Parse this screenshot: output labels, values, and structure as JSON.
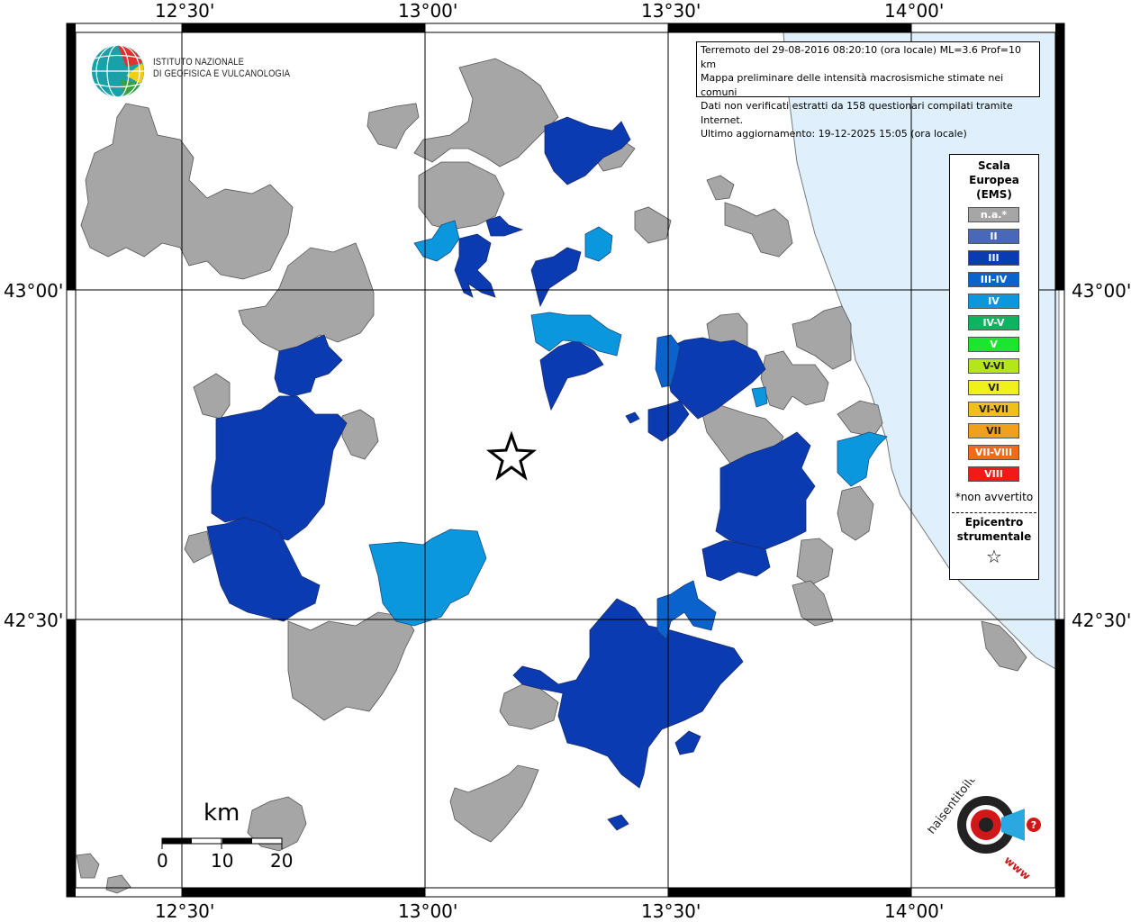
{
  "map": {
    "lon_labels": [
      "12°30'",
      "13°00'",
      "13°30'",
      "14°00'"
    ],
    "lat_labels": [
      "43°00'",
      "42°30'"
    ]
  },
  "info": {
    "line1": "Terremoto del 29-08-2016 08:20:10 (ora locale) ML=3.6 Prof=10 km",
    "line2": "Mappa preliminare delle intensità macrosismiche stimate nei comuni",
    "line3": "Dati non verificati estratti da 158 questionari compilati tramite Internet.",
    "line4": "Ultimo aggiornamento: 19-12-2025 15:05 (ora locale)"
  },
  "legend": {
    "title_1": "Scala",
    "title_2": "Europea",
    "title_3": "(EMS)",
    "items": [
      {
        "label": "n.a.*",
        "color": "#a6a6a6"
      },
      {
        "label": "II",
        "color": "#4a68b8"
      },
      {
        "label": "III",
        "color": "#0a3bb0"
      },
      {
        "label": "III-IV",
        "color": "#0a62cc"
      },
      {
        "label": "IV",
        "color": "#0b97dd"
      },
      {
        "label": "IV-V",
        "color": "#0bb45e"
      },
      {
        "label": "V",
        "color": "#1ae62c"
      },
      {
        "label": "V-VI",
        "color": "#b4e61a"
      },
      {
        "label": "VI",
        "color": "#f0f01a"
      },
      {
        "label": "VI-VII",
        "color": "#f0c01a"
      },
      {
        "label": "VII",
        "color": "#f0a01a"
      },
      {
        "label": "VII-VIII",
        "color": "#f06a1a"
      },
      {
        "label": "VIII",
        "color": "#f01a1a"
      }
    ],
    "note": "*non avvertito",
    "epicenter_1": "Epicentro",
    "epicenter_2": "strumentale",
    "epicenter_symbol": "☆"
  },
  "logo": {
    "ingv_line1": "ISTITUTO NAZIONALE",
    "ingv_line2": "DI GEOFISICA E VULCANOLOGIA",
    "hst_text": "haisentitoilterremoto.it",
    "hst_url": "www."
  },
  "scale_bar": {
    "unit": "km",
    "labels": [
      "0",
      "10",
      "20"
    ]
  }
}
